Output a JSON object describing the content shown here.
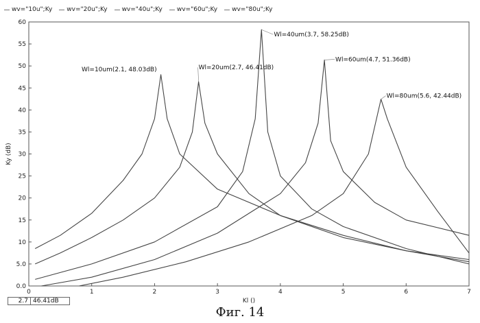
{
  "legend": [
    {
      "label": "wv=\"10u\";Ky"
    },
    {
      "label": "wv=\"20u\";Ky"
    },
    {
      "label": "wv=\"40u\";Ky"
    },
    {
      "label": "wv=\"60u\";Ky"
    },
    {
      "label": "wv=\"80u\";Ky"
    }
  ],
  "readout": {
    "x": "2.7",
    "y": "46.41dB"
  },
  "caption": "Фиг. 14",
  "chart_data": {
    "type": "line",
    "xlabel": "Kl ()",
    "ylabel": "Ky (dB)",
    "xlim": [
      0,
      7
    ],
    "ylim": [
      0,
      60
    ],
    "xticks": [
      "0",
      "1",
      "2",
      "3",
      "4",
      "5",
      "6",
      "7"
    ],
    "yticks": [
      "0.0",
      "5.0",
      "10",
      "15",
      "20",
      "25",
      "30",
      "35",
      "40",
      "45",
      "50",
      "55",
      "60"
    ],
    "grid": false,
    "line_color": "#444444",
    "series": [
      {
        "name": "wv=\"10u\";Ky",
        "x": [
          0.1,
          0.5,
          1.0,
          1.5,
          1.8,
          2.0,
          2.1,
          2.2,
          2.4,
          3.0,
          4.0,
          5.0,
          6.0,
          7.0
        ],
        "y": [
          8.5,
          11.5,
          16.5,
          24.0,
          30.0,
          38.0,
          48.03,
          38.0,
          30.0,
          22.0,
          16.0,
          11.5,
          8.0,
          6.0
        ]
      },
      {
        "name": "wv=\"20u\";Ky",
        "x": [
          0.1,
          0.5,
          1.0,
          1.5,
          2.0,
          2.4,
          2.6,
          2.7,
          2.8,
          3.0,
          3.5,
          4.0,
          5.0,
          6.0,
          7.0
        ],
        "y": [
          5.0,
          7.5,
          11.0,
          15.0,
          20.0,
          27.0,
          35.0,
          46.41,
          37.0,
          30.0,
          21.0,
          16.0,
          11.0,
          8.0,
          5.5
        ]
      },
      {
        "name": "wv=\"40u\";Ky",
        "x": [
          0.1,
          1.0,
          2.0,
          3.0,
          3.4,
          3.6,
          3.7,
          3.8,
          4.0,
          4.5,
          5.0,
          6.0,
          7.0
        ],
        "y": [
          1.5,
          5.0,
          10.0,
          18.0,
          26.0,
          38.0,
          58.25,
          35.0,
          25.0,
          17.5,
          13.5,
          8.5,
          5.0
        ]
      },
      {
        "name": "wv=\"60u\";Ky",
        "x": [
          0.2,
          1.0,
          2.0,
          3.0,
          4.0,
          4.4,
          4.6,
          4.7,
          4.8,
          5.0,
          5.5,
          6.0,
          7.0
        ],
        "y": [
          0.0,
          2.0,
          6.0,
          12.0,
          21.0,
          28.0,
          37.0,
          51.36,
          33.0,
          26.0,
          19.0,
          15.0,
          11.5
        ]
      },
      {
        "name": "wv=\"80u\";Ky",
        "x": [
          0.8,
          1.5,
          2.5,
          3.5,
          4.5,
          5.0,
          5.4,
          5.6,
          5.7,
          6.0,
          6.5,
          7.0
        ],
        "y": [
          0.0,
          2.0,
          5.5,
          10.0,
          16.0,
          21.0,
          30.0,
          42.44,
          38.0,
          27.0,
          17.0,
          7.5
        ]
      }
    ],
    "annotations": [
      {
        "text": "Wl=10um(2.1, 48.03dB)",
        "x": 2.1,
        "y": 48.03
      },
      {
        "text": "Wl=20um(2.7, 46.41dB)",
        "x": 2.7,
        "y": 46.41
      },
      {
        "text": "Wl=40um(3.7, 58.25dB)",
        "x": 3.7,
        "y": 58.25
      },
      {
        "text": "Wl=60um(4.7, 51.36dB)",
        "x": 4.7,
        "y": 51.36
      },
      {
        "text": "Wl=80um(5.6, 42.44dB)",
        "x": 5.6,
        "y": 42.44
      }
    ]
  }
}
